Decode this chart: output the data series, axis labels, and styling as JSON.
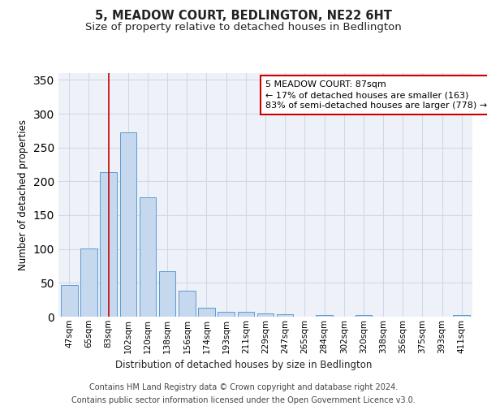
{
  "title": "5, MEADOW COURT, BEDLINGTON, NE22 6HT",
  "subtitle": "Size of property relative to detached houses in Bedlington",
  "xlabel": "Distribution of detached houses by size in Bedlington",
  "ylabel": "Number of detached properties",
  "bar_labels": [
    "47sqm",
    "65sqm",
    "83sqm",
    "102sqm",
    "120sqm",
    "138sqm",
    "156sqm",
    "174sqm",
    "193sqm",
    "211sqm",
    "229sqm",
    "247sqm",
    "265sqm",
    "284sqm",
    "302sqm",
    "320sqm",
    "338sqm",
    "356sqm",
    "375sqm",
    "393sqm",
    "411sqm"
  ],
  "bar_values": [
    47,
    101,
    214,
    272,
    176,
    67,
    39,
    13,
    7,
    7,
    5,
    4,
    0,
    2,
    0,
    2,
    0,
    0,
    0,
    0,
    3
  ],
  "bar_color": "#c5d8ed",
  "bar_edge_color": "#5b9bd5",
  "grid_color": "#d0d8e8",
  "background_color": "#eef2f8",
  "vline_x": 2,
  "vline_color": "#cc0000",
  "annotation_line1": "5 MEADOW COURT: 87sqm",
  "annotation_line2": "← 17% of detached houses are smaller (163)",
  "annotation_line3": "83% of semi-detached houses are larger (778) →",
  "annotation_box_color": "#ffffff",
  "annotation_border_color": "#cc0000",
  "footer_line1": "Contains HM Land Registry data © Crown copyright and database right 2024.",
  "footer_line2": "Contains public sector information licensed under the Open Government Licence v3.0.",
  "ylim": [
    0,
    360
  ],
  "title_fontsize": 10.5,
  "subtitle_fontsize": 9.5,
  "axis_label_fontsize": 8.5,
  "tick_fontsize": 7.5,
  "annotation_fontsize": 8,
  "footer_fontsize": 7
}
